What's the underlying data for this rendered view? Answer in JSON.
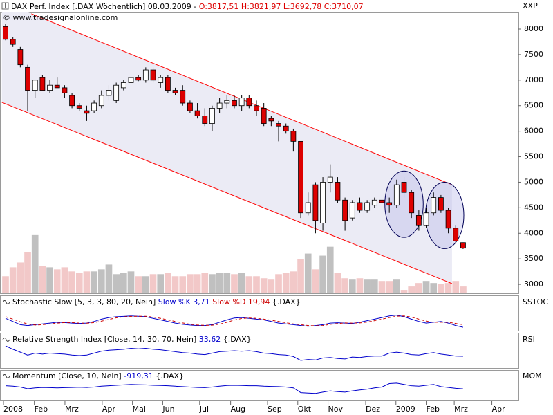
{
  "chart_data": [
    {
      "type": "candlestick",
      "title": "DAX Perf. Index [.DAX  Wöchentlich]",
      "date": "08.03.2009",
      "separator": "-",
      "ohlc_label": "O:3817,51 H:3821,97 L:3692,78 C:3710,07",
      "watermark": "© www.tradesignalonline.com",
      "axis_label": "XXP",
      "x": [
        1,
        2,
        3,
        4,
        5,
        6,
        7,
        8,
        9,
        10,
        11,
        12,
        13,
        14,
        15,
        16,
        17,
        18,
        19,
        20,
        21,
        22,
        23,
        24,
        25,
        26,
        27,
        28,
        29,
        30,
        31,
        32,
        33,
        34,
        35,
        36,
        37,
        38,
        39,
        40,
        41,
        42,
        43,
        44,
        45,
        46,
        47,
        48,
        49,
        50,
        51,
        52,
        53,
        54,
        55,
        56,
        57,
        58,
        59,
        60,
        61,
        62,
        63
      ],
      "open": [
        8050,
        7800,
        7600,
        7250,
        6800,
        7050,
        6800,
        6900,
        6850,
        6700,
        6500,
        6400,
        6400,
        6500,
        6700,
        6600,
        6850,
        6950,
        7050,
        7000,
        7200,
        6950,
        7050,
        6800,
        6800,
        6550,
        6400,
        6300,
        6150,
        6450,
        6550,
        6600,
        6500,
        6650,
        6500,
        6450,
        6250,
        6150,
        6100,
        6000,
        5800,
        4400,
        4950,
        4200,
        5000,
        5000,
        4650,
        4300,
        4600,
        4450,
        4550,
        4650,
        4600,
        4550,
        5000,
        4800,
        4350,
        4150,
        4400,
        4700,
        4450,
        4100,
        3817.51
      ],
      "high": [
        8100,
        7850,
        7650,
        7300,
        7000,
        7100,
        7000,
        7050,
        6900,
        6750,
        6550,
        6500,
        6600,
        6800,
        6900,
        6950,
        7000,
        7100,
        7100,
        7250,
        7250,
        7100,
        7100,
        6850,
        6900,
        6600,
        6550,
        6450,
        6500,
        6650,
        6700,
        6700,
        6700,
        6700,
        6600,
        6550,
        6300,
        6200,
        6150,
        6050,
        5800,
        4800,
        5000,
        5100,
        5350,
        5100,
        4700,
        4650,
        4700,
        4650,
        4700,
        4700,
        4700,
        5050,
        5100,
        4850,
        4450,
        4500,
        4800,
        4750,
        4500,
        4150,
        3821.97
      ],
      "low": [
        7780,
        7650,
        7250,
        6400,
        6650,
        6800,
        6750,
        6850,
        6650,
        6450,
        6400,
        6200,
        6350,
        6450,
        6600,
        6550,
        6800,
        6900,
        6980,
        6950,
        6950,
        6850,
        6750,
        6700,
        6500,
        6350,
        6250,
        6100,
        6000,
        6350,
        6450,
        6450,
        6400,
        6450,
        6300,
        6100,
        6100,
        5800,
        5950,
        5600,
        4300,
        4350,
        4000,
        4050,
        4800,
        4600,
        4050,
        4250,
        4400,
        4400,
        4500,
        4550,
        4400,
        4500,
        4700,
        4300,
        4050,
        4100,
        4350,
        4400,
        4000,
        3800,
        3692.78
      ],
      "close": [
        7800,
        7700,
        7300,
        6800,
        7000,
        6800,
        6900,
        6850,
        6750,
        6500,
        6450,
        6350,
        6550,
        6700,
        6800,
        6900,
        6950,
        7050,
        7000,
        7200,
        7000,
        7050,
        6800,
        6750,
        6550,
        6400,
        6300,
        6150,
        6450,
        6550,
        6600,
        6500,
        6650,
        6500,
        6400,
        6150,
        6200,
        6100,
        6000,
        5800,
        4400,
        4600,
        4250,
        5000,
        5100,
        4650,
        4250,
        4600,
        4450,
        4600,
        4650,
        4600,
        4550,
        4950,
        4800,
        4400,
        4150,
        4400,
        4700,
        4450,
        4100,
        3850,
        3710.07
      ],
      "up_color": "#ffffff",
      "down_color": "#dd0000",
      "xlim": [
        0.25,
        70.5
      ],
      "ylim": [
        2825,
        8325
      ],
      "yticks": [
        3000,
        3500,
        4000,
        4500,
        5000,
        5500,
        6000,
        6500,
        7000,
        7500,
        8000
      ],
      "xticks": [
        {
          "value": 0.72,
          "label": "2008"
        },
        {
          "value": 4.9,
          "label": "Feb"
        },
        {
          "value": 9.05,
          "label": "Mrz"
        },
        {
          "value": 14.1,
          "label": "Apr"
        },
        {
          "value": 18.2,
          "label": "Mai"
        },
        {
          "value": 22.3,
          "label": "Jun"
        },
        {
          "value": 27.3,
          "label": "Jul"
        },
        {
          "value": 31.5,
          "label": "Aug"
        },
        {
          "value": 36.5,
          "label": "Sep"
        },
        {
          "value": 40.6,
          "label": "Okt"
        },
        {
          "value": 44.7,
          "label": "Nov"
        },
        {
          "value": 49.8,
          "label": "Dez"
        },
        {
          "value": 53.9,
          "label": "2009"
        },
        {
          "value": 58.0,
          "label": "Feb"
        },
        {
          "value": 61.8,
          "label": "Mrz"
        },
        {
          "value": 66.9,
          "label": "Apr"
        }
      ],
      "channel_color": "#ff0000",
      "channel": [
        {
          "x": [
            4.5,
            61.5
          ],
          "y": [
            8300,
            4950
          ]
        },
        {
          "x": [
            0.5,
            61.5
          ],
          "y": [
            6565,
            3015
          ]
        }
      ],
      "ellipses": [
        {
          "cx": 55.0,
          "cy": 4570,
          "rx": 2.6,
          "ry": 650
        },
        {
          "cx": 60.5,
          "cy": 4350,
          "rx": 2.6,
          "ry": 650
        }
      ]
    },
    {
      "type": "bar",
      "values": [
        25,
        38,
        45,
        60,
        85,
        40,
        38,
        35,
        38,
        32,
        30,
        32,
        32,
        35,
        42,
        28,
        30,
        32,
        25,
        25,
        28,
        28,
        30,
        25,
        25,
        28,
        28,
        30,
        28,
        30,
        30,
        28,
        30,
        25,
        25,
        22,
        20,
        28,
        30,
        32,
        50,
        58,
        35,
        55,
        68,
        30,
        22,
        20,
        22,
        20,
        20,
        18,
        18,
        20,
        5,
        10,
        15,
        18,
        15,
        14,
        15,
        18,
        10
      ],
      "ylim": [
        0,
        100
      ],
      "up_color": "#c0c0c0",
      "down_color": "#f2c8c8"
    },
    {
      "type": "line",
      "title": "Stochastic Slow [5, 3, 3, 80, 20, Nein]",
      "suffix": "{.DAX}",
      "axis_label": "SSTOC",
      "ylim": [
        0,
        100
      ],
      "series": [
        {
          "name": "Slow %K 3,71",
          "color": "#0000cc",
          "dashed": false,
          "values": [
            60,
            40,
            20,
            15,
            20,
            25,
            30,
            35,
            33,
            30,
            28,
            30,
            40,
            55,
            65,
            70,
            72,
            75,
            73,
            70,
            60,
            50,
            40,
            30,
            22,
            18,
            15,
            15,
            20,
            35,
            50,
            62,
            65,
            60,
            55,
            50,
            40,
            30,
            25,
            20,
            15,
            10,
            15,
            20,
            30,
            32,
            30,
            28,
            35,
            45,
            55,
            65,
            75,
            80,
            70,
            55,
            40,
            30,
            35,
            40,
            30,
            15,
            3.71
          ]
        },
        {
          "name": "Slow %D 19,94",
          "color": "#cc0000",
          "dashed": true,
          "values": [
            70,
            55,
            38,
            25,
            18,
            20,
            25,
            30,
            33,
            33,
            30,
            29,
            33,
            42,
            53,
            63,
            69,
            72,
            73,
            73,
            68,
            60,
            50,
            40,
            31,
            23,
            18,
            16,
            17,
            23,
            35,
            49,
            59,
            62,
            60,
            55,
            48,
            40,
            32,
            25,
            20,
            15,
            13,
            15,
            22,
            27,
            31,
            30,
            31,
            36,
            45,
            55,
            65,
            73,
            75,
            68,
            55,
            42,
            35,
            35,
            35,
            28,
            19.94
          ]
        }
      ]
    },
    {
      "type": "line",
      "title": "Relative Strength Index [Close, 14, 30, 70, Nein]",
      "suffix": "{.DAX}",
      "axis_label": "RSI",
      "ylim": [
        15,
        75
      ],
      "series": [
        {
          "name": "33,62",
          "color": "#0000cc",
          "dashed": false,
          "values": [
            55,
            48,
            42,
            36,
            40,
            38,
            40,
            39,
            38,
            36,
            35,
            36,
            40,
            44,
            46,
            47,
            48,
            50,
            49,
            50,
            48,
            47,
            45,
            43,
            41,
            40,
            38,
            37,
            40,
            43,
            44,
            45,
            44,
            45,
            43,
            40,
            39,
            37,
            36,
            33,
            25,
            27,
            26,
            30,
            31,
            29,
            28,
            32,
            31,
            33,
            34,
            34,
            40,
            42,
            40,
            37,
            36,
            39,
            41,
            38,
            36,
            34,
            33.62
          ]
        }
      ]
    },
    {
      "type": "line",
      "title": "Momentum [Close, 10, Nein]",
      "suffix": "{.DAX}",
      "axis_label": "MOM",
      "ylim": [
        -3000,
        2000
      ],
      "series": [
        {
          "name": "-919,31",
          "color": "#0000cc",
          "dashed": false,
          "values": [
            -200,
            -300,
            -500,
            -900,
            -700,
            -600,
            -650,
            -700,
            -650,
            -600,
            -550,
            -600,
            -500,
            -300,
            -200,
            -100,
            0,
            100,
            50,
            0,
            -100,
            -150,
            -200,
            -300,
            -400,
            -500,
            -600,
            -650,
            -500,
            -300,
            -150,
            -100,
            -150,
            -200,
            -200,
            -300,
            -350,
            -400,
            -500,
            -700,
            -1800,
            -1900,
            -2000,
            -1700,
            -1400,
            -1600,
            -1700,
            -1400,
            -1200,
            -1000,
            -700,
            -500,
            300,
            400,
            100,
            -200,
            -300,
            -100,
            100,
            -400,
            -600,
            -800,
            -919.31
          ]
        }
      ]
    }
  ]
}
